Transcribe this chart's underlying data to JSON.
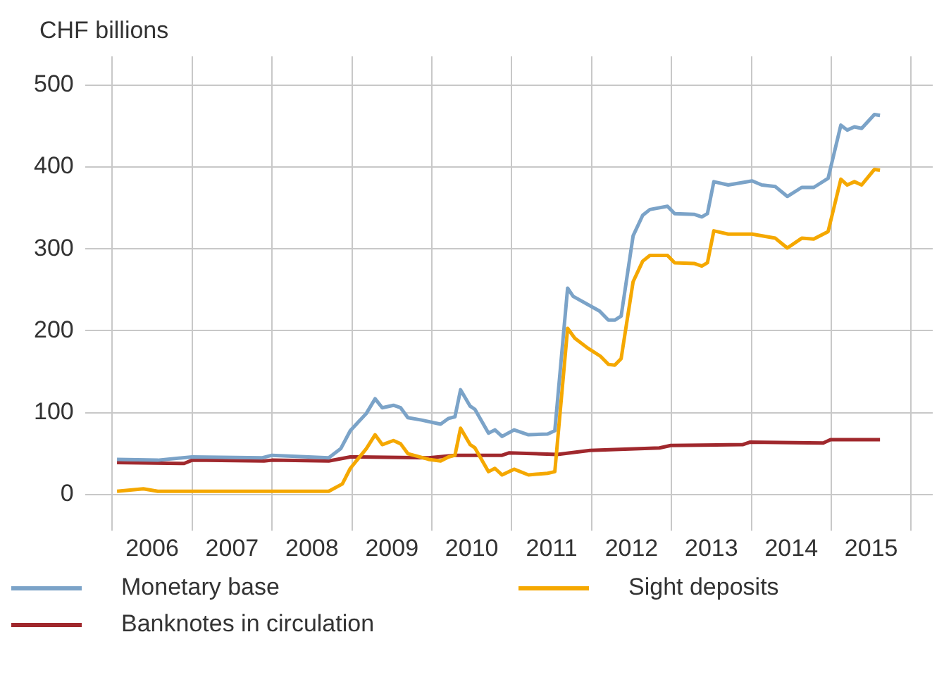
{
  "chart_data": {
    "type": "line",
    "ylabel": "CHF billions",
    "xlim": [
      2005.66,
      2016.27
    ],
    "ylim": [
      -20,
      535
    ],
    "xticks": [
      {
        "value": 2006,
        "label": null
      },
      {
        "value": 2006.5,
        "label": "2006"
      },
      {
        "value": 2007,
        "label": null
      },
      {
        "value": 2007.5,
        "label": "2007"
      },
      {
        "value": 2008,
        "label": null
      },
      {
        "value": 2008.5,
        "label": "2008"
      },
      {
        "value": 2009,
        "label": null
      },
      {
        "value": 2009.5,
        "label": "2009"
      },
      {
        "value": 2010,
        "label": null
      },
      {
        "value": 2010.5,
        "label": "2010"
      },
      {
        "value": 2011,
        "label": null
      },
      {
        "value": 2011.5,
        "label": "2011"
      },
      {
        "value": 2012,
        "label": null
      },
      {
        "value": 2012.5,
        "label": "2012"
      },
      {
        "value": 2013,
        "label": null
      },
      {
        "value": 2013.5,
        "label": "2013"
      },
      {
        "value": 2014,
        "label": null
      },
      {
        "value": 2014.5,
        "label": "2014"
      },
      {
        "value": 2015,
        "label": null
      },
      {
        "value": 2015.5,
        "label": "2015"
      },
      {
        "value": 2016,
        "label": null
      }
    ],
    "yticks": [
      0,
      100,
      200,
      300,
      400,
      500
    ],
    "grid": true,
    "legend": "bottom",
    "marker": "none",
    "line_style": "solid",
    "series": [
      {
        "name": "Monetary base",
        "color": "#7ba3c8",
        "x": [
          2006.06,
          2006.57,
          2007.0,
          2007.88,
          2008.0,
          2008.71,
          2008.86,
          2008.98,
          2009.18,
          2009.29,
          2009.38,
          2009.52,
          2009.61,
          2009.7,
          2009.87,
          2010.11,
          2010.21,
          2010.29,
          2010.36,
          2010.48,
          2010.54,
          2010.71,
          2010.79,
          2010.88,
          2011.03,
          2011.21,
          2011.45,
          2011.54,
          2011.7,
          2011.77,
          2012.1,
          2012.21,
          2012.29,
          2012.37,
          2012.52,
          2012.64,
          2012.73,
          2012.95,
          2013.04,
          2013.29,
          2013.38,
          2013.45,
          2013.53,
          2013.71,
          2014.01,
          2014.13,
          2014.3,
          2014.45,
          2014.63,
          2014.78,
          2014.96,
          2015.12,
          2015.2,
          2015.29,
          2015.38,
          2015.54,
          2015.61
        ],
        "values": [
          43,
          42,
          46,
          45,
          48,
          45,
          56,
          78,
          99,
          117,
          106,
          109,
          106,
          94,
          91,
          86,
          93,
          95,
          128,
          108,
          104,
          75,
          79,
          71,
          79,
          73,
          74,
          78,
          252,
          242,
          224,
          213,
          213,
          218,
          316,
          341,
          348,
          352,
          343,
          342,
          339,
          343,
          382,
          378,
          383,
          378,
          376,
          364,
          375,
          375,
          386,
          451,
          445,
          449,
          447,
          464,
          463
        ]
      },
      {
        "name": "Sight deposits",
        "color": "#f5a800",
        "x": [
          2006.06,
          2006.39,
          2006.57,
          2008.71,
          2008.88,
          2008.98,
          2009.18,
          2009.29,
          2009.38,
          2009.52,
          2009.61,
          2009.7,
          2009.96,
          2010.11,
          2010.21,
          2010.29,
          2010.36,
          2010.48,
          2010.54,
          2010.71,
          2010.79,
          2010.88,
          2011.03,
          2011.21,
          2011.45,
          2011.54,
          2011.7,
          2011.79,
          2011.95,
          2012.11,
          2012.21,
          2012.29,
          2012.37,
          2012.52,
          2012.64,
          2012.73,
          2012.95,
          2013.04,
          2013.29,
          2013.38,
          2013.45,
          2013.53,
          2013.71,
          2014.01,
          2014.3,
          2014.45,
          2014.63,
          2014.78,
          2014.96,
          2015.12,
          2015.2,
          2015.29,
          2015.38,
          2015.54,
          2015.61
        ],
        "values": [
          4,
          7,
          4,
          4,
          13,
          32,
          56,
          73,
          61,
          66,
          62,
          50,
          43,
          41,
          46,
          48,
          81,
          61,
          57,
          28,
          32,
          24,
          31,
          24,
          26,
          28,
          203,
          191,
          179,
          169,
          159,
          158,
          166,
          260,
          285,
          292,
          292,
          283,
          282,
          279,
          283,
          322,
          318,
          318,
          313,
          301,
          313,
          312,
          321,
          385,
          378,
          382,
          378,
          397,
          396
        ]
      },
      {
        "name": "Banknotes in circulation",
        "color": "#a0282d",
        "x": [
          2006.06,
          2006.9,
          2007.0,
          2007.9,
          2008.0,
          2008.71,
          2008.98,
          2009.96,
          2010.29,
          2010.88,
          2010.97,
          2011.57,
          2011.98,
          2012.85,
          2012.99,
          2013.89,
          2013.98,
          2014.9,
          2014.99,
          2015.61
        ],
        "values": [
          39,
          38,
          42,
          41,
          42,
          41,
          46,
          45,
          48,
          48,
          51,
          49,
          54,
          57,
          60,
          61,
          64,
          63,
          67,
          67
        ]
      }
    ]
  }
}
